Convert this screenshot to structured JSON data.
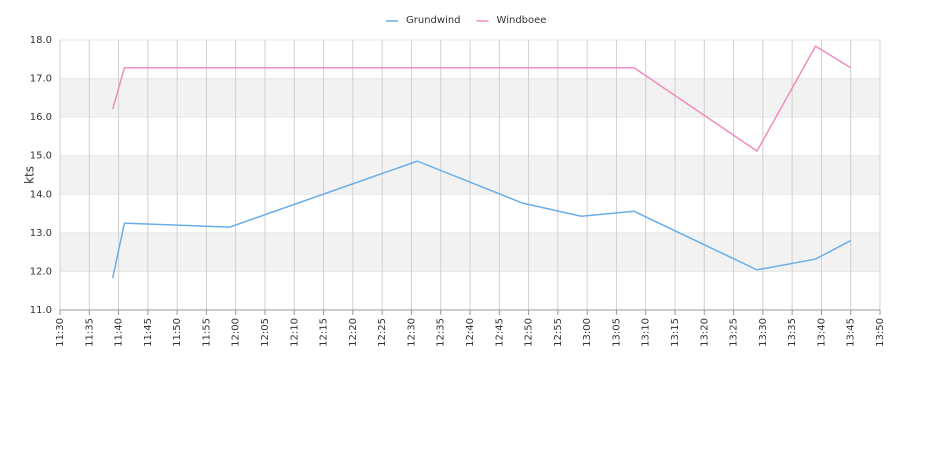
{
  "chart_data": {
    "type": "line",
    "y_label": "kts",
    "x": [
      "11:39",
      "11:41",
      "11:59",
      "12:31",
      "12:49",
      "12:59",
      "13:08",
      "13:29",
      "13:39",
      "13:45"
    ],
    "series": [
      {
        "name": "Grundwind",
        "color": "#6aaee8",
        "values": [
          11.83,
          13.25,
          13.15,
          14.86,
          13.77,
          13.43,
          13.56,
          12.04,
          12.32,
          12.8
        ]
      },
      {
        "name": "Windboee",
        "color": "#f08cc0",
        "values": [
          16.21,
          17.28,
          17.28,
          17.28,
          17.28,
          17.28,
          17.28,
          15.12,
          17.84,
          17.28
        ]
      }
    ],
    "xlim": [
      "11:30",
      "13:50"
    ],
    "xticks": [
      "11:30",
      "11:35",
      "11:40",
      "11:45",
      "11:50",
      "11:55",
      "12:00",
      "12:05",
      "12:10",
      "12:15",
      "12:20",
      "12:25",
      "12:30",
      "12:35",
      "12:40",
      "12:45",
      "12:50",
      "12:55",
      "13:00",
      "13:05",
      "13:10",
      "13:15",
      "13:20",
      "13:25",
      "13:30",
      "13:35",
      "13:40",
      "13:45",
      "13:50"
    ],
    "ylim": [
      11,
      18
    ],
    "yticks": [
      {
        "value": 11,
        "label": "11.0"
      },
      {
        "value": 12,
        "label": "12.0"
      },
      {
        "value": 13,
        "label": "13.0"
      },
      {
        "value": 14,
        "label": "14.0"
      },
      {
        "value": 15,
        "label": "15.0"
      },
      {
        "value": 16,
        "label": "16.0"
      },
      {
        "value": 17,
        "label": "17.0"
      },
      {
        "value": 18,
        "label": "18.0"
      }
    ],
    "grid": true,
    "legend": "top"
  }
}
